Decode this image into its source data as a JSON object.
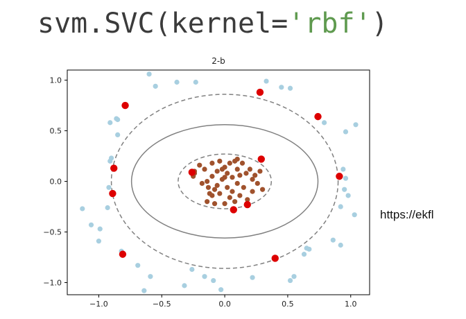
{
  "header": {
    "code_prefix": "svm.SVC(kernel=",
    "code_string": "'rbf'",
    "code_suffix": ")"
  },
  "source_text": "https://ekfl",
  "colors": {
    "outer_class": "#a8cfe0",
    "inner_class": "#a0522d",
    "support_vectors": "#dd0000",
    "margin_lines": "#808080",
    "decision_boundary": "#808080",
    "code_string": "#5f9a4f"
  },
  "chart_data": {
    "type": "scatter",
    "title": "2-b",
    "xlim": [
      -1.25,
      1.15
    ],
    "ylim": [
      -1.12,
      1.1
    ],
    "x_ticks": [
      -1.0,
      -0.5,
      0.0,
      0.5,
      1.0
    ],
    "x_tick_labels": [
      "−1.0",
      "−0.5",
      "0.0",
      "0.5",
      "1.0"
    ],
    "y_ticks": [
      -1.0,
      -0.5,
      0.0,
      0.5,
      1.0
    ],
    "y_tick_labels": [
      "−1.0",
      "−0.5",
      "0.0",
      "0.5",
      "1.0"
    ],
    "grid": false,
    "series": [
      {
        "kind": "outer_points",
        "points": [
          [
            -0.6,
            1.06
          ],
          [
            -0.55,
            0.94
          ],
          [
            -0.38,
            0.98
          ],
          [
            -0.23,
            0.98
          ],
          [
            0.33,
            0.99
          ],
          [
            0.45,
            0.93
          ],
          [
            0.52,
            0.92
          ],
          [
            -0.79,
            0.74
          ],
          [
            -0.86,
            0.62
          ],
          [
            -0.85,
            0.61
          ],
          [
            -0.91,
            0.58
          ],
          [
            -0.85,
            0.46
          ],
          [
            0.79,
            0.58
          ],
          [
            0.96,
            0.49
          ],
          [
            1.04,
            0.56
          ],
          [
            -0.9,
            0.23
          ],
          [
            -0.91,
            0.2
          ],
          [
            0.94,
            0.12
          ],
          [
            0.96,
            0.03
          ],
          [
            -0.92,
            -0.06
          ],
          [
            0.95,
            -0.08
          ],
          [
            0.98,
            -0.14
          ],
          [
            -0.93,
            -0.26
          ],
          [
            0.92,
            -0.25
          ],
          [
            -1.13,
            -0.27
          ],
          [
            -0.99,
            -0.47
          ],
          [
            1.03,
            -0.33
          ],
          [
            -1.06,
            -0.43
          ],
          [
            -1.0,
            -0.59
          ],
          [
            -0.82,
            -0.69
          ],
          [
            0.86,
            -0.58
          ],
          [
            0.92,
            -0.63
          ],
          [
            0.63,
            -0.72
          ],
          [
            0.67,
            -0.67
          ],
          [
            0.65,
            -0.66
          ],
          [
            -0.69,
            -0.83
          ],
          [
            -0.59,
            -0.94
          ],
          [
            -0.26,
            -0.87
          ],
          [
            -0.16,
            -0.94
          ],
          [
            -0.09,
            -0.98
          ],
          [
            0.22,
            -0.95
          ],
          [
            0.52,
            -0.98
          ],
          [
            0.55,
            -0.94
          ],
          [
            -0.64,
            -1.08
          ],
          [
            -0.32,
            -1.03
          ],
          [
            -0.03,
            -1.07
          ]
        ]
      },
      {
        "kind": "inner_points",
        "points": [
          [
            -0.25,
            0.05
          ],
          [
            -0.24,
            0.08
          ],
          [
            -0.24,
            0.1
          ],
          [
            -0.2,
            0.16
          ],
          [
            -0.16,
            0.12
          ],
          [
            -0.14,
            0.0
          ],
          [
            -0.13,
            -0.06
          ],
          [
            -0.12,
            -0.12
          ],
          [
            -0.1,
            0.18
          ],
          [
            -0.1,
            0.05
          ],
          [
            -0.1,
            -0.14
          ],
          [
            -0.08,
            -0.22
          ],
          [
            -0.06,
            0.1
          ],
          [
            -0.06,
            -0.04
          ],
          [
            -0.04,
            0.2
          ],
          [
            -0.04,
            -0.12
          ],
          [
            -0.02,
            0.02
          ],
          [
            0.0,
            -0.22
          ],
          [
            0.0,
            0.14
          ],
          [
            0.02,
            0.08
          ],
          [
            0.02,
            -0.06
          ],
          [
            0.04,
            0.18
          ],
          [
            0.04,
            -0.16
          ],
          [
            0.06,
            0.04
          ],
          [
            0.06,
            -0.1
          ],
          [
            0.08,
            0.2
          ],
          [
            0.08,
            -0.2
          ],
          [
            0.1,
            0.12
          ],
          [
            0.1,
            -0.02
          ],
          [
            0.12,
            0.06
          ],
          [
            0.12,
            -0.14
          ],
          [
            0.14,
            0.18
          ],
          [
            0.15,
            -0.06
          ],
          [
            0.17,
            0.08
          ],
          [
            0.18,
            -0.18
          ],
          [
            0.2,
            0.12
          ],
          [
            0.22,
            0.02
          ],
          [
            0.22,
            -0.1
          ],
          [
            0.24,
            0.06
          ],
          [
            0.26,
            -0.02
          ],
          [
            -0.02,
            0.12
          ],
          [
            -0.18,
            -0.02
          ],
          [
            0.0,
            0.04
          ],
          [
            -0.08,
            -0.08
          ],
          [
            0.28,
            0.1
          ],
          [
            -0.14,
            -0.2
          ],
          [
            0.1,
            0.22
          ],
          [
            0.3,
            -0.08
          ]
        ]
      },
      {
        "kind": "support_vectors",
        "points": [
          [
            -0.79,
            0.75
          ],
          [
            0.28,
            0.88
          ],
          [
            0.74,
            0.64
          ],
          [
            -0.88,
            0.13
          ],
          [
            0.91,
            0.05
          ],
          [
            -0.89,
            -0.12
          ],
          [
            -0.81,
            -0.72
          ],
          [
            0.4,
            -0.76
          ],
          [
            -0.26,
            0.09
          ],
          [
            0.29,
            0.22
          ],
          [
            0.07,
            -0.28
          ],
          [
            0.18,
            -0.23
          ]
        ]
      }
    ],
    "contours": [
      {
        "level": "margin_outer",
        "style": "dashed",
        "rx": 0.9,
        "ry": 0.86
      },
      {
        "level": "decision_boundary",
        "style": "solid",
        "rx": 0.74,
        "ry": 0.56
      },
      {
        "level": "margin_inner",
        "style": "dashed",
        "rx": 0.37,
        "ry": 0.27
      }
    ]
  }
}
